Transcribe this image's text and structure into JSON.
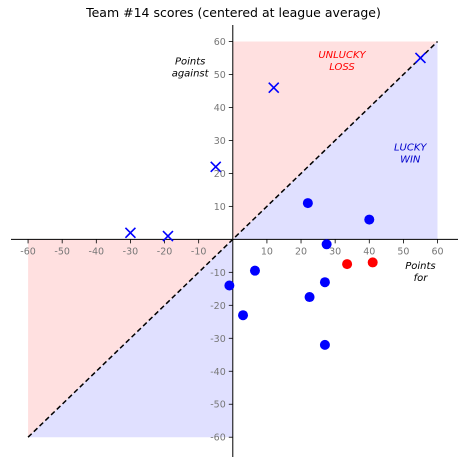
{
  "chart_data": {
    "type": "scatter",
    "title": "Team #14 scores (centered at league average)",
    "xlabel": "Points for",
    "ylabel": "Points against",
    "xlim": [
      -65,
      66
    ],
    "ylim": [
      -66,
      65
    ],
    "xticks": [
      -60,
      -50,
      -40,
      -30,
      -20,
      -10,
      10,
      20,
      30,
      40,
      50,
      60
    ],
    "yticks": [
      -60,
      -50,
      -40,
      -30,
      -20,
      -10,
      10,
      20,
      30,
      40,
      50,
      60
    ],
    "xtick_labels": [
      "-60",
      "-50",
      "-40",
      "-30",
      "-20",
      "-10",
      "10",
      "20",
      "30",
      "40",
      "50",
      "60"
    ],
    "ytick_labels": [
      "-60",
      "-50",
      "-40",
      "-30",
      "-20",
      "-10",
      "10",
      "20",
      "30",
      "40",
      "50",
      "60"
    ],
    "grid": false,
    "regions": [
      {
        "label": "UNLUCKY LOSS",
        "label_lines": [
          "UNLUCKY",
          "LOSS"
        ],
        "color": "#ff0000",
        "fill": "#ffe0e0"
      },
      {
        "label": "LUCKY WIN",
        "label_lines": [
          "LUCKY",
          "WIN"
        ],
        "color": "#0000cc",
        "fill": "#e0e0ff"
      }
    ],
    "diagonal": {
      "x": [
        -60,
        60
      ],
      "y": [
        -60,
        60
      ],
      "style": "dashed",
      "color": "#000000"
    },
    "series": [
      {
        "marker": "x",
        "color": "#0000ff",
        "points": [
          [
            -30,
            2
          ],
          [
            -19,
            1
          ],
          [
            -5,
            22
          ],
          [
            12,
            46
          ],
          [
            55,
            55
          ]
        ]
      },
      {
        "marker": "circle",
        "color": "#0000ff",
        "points": [
          [
            22,
            11
          ],
          [
            40,
            6
          ],
          [
            27.5,
            -1.5
          ],
          [
            6.5,
            -9.5
          ],
          [
            -1,
            -14
          ],
          [
            27,
            -13
          ],
          [
            22.5,
            -17.5
          ],
          [
            3,
            -23
          ],
          [
            27,
            -32
          ]
        ]
      },
      {
        "marker": "circle",
        "color": "#ff0000",
        "points": [
          [
            33.5,
            -7.5
          ],
          [
            41,
            -7
          ]
        ]
      }
    ]
  }
}
